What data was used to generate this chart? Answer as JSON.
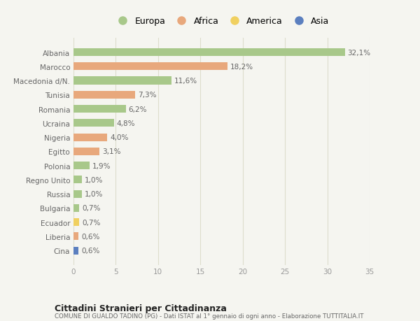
{
  "countries": [
    "Albania",
    "Marocco",
    "Macedonia d/N.",
    "Tunisia",
    "Romania",
    "Ucraina",
    "Nigeria",
    "Egitto",
    "Polonia",
    "Regno Unito",
    "Russia",
    "Bulgaria",
    "Ecuador",
    "Liberia",
    "Cina"
  ],
  "values": [
    32.1,
    18.2,
    11.6,
    7.3,
    6.2,
    4.8,
    4.0,
    3.1,
    1.9,
    1.0,
    1.0,
    0.7,
    0.7,
    0.6,
    0.6
  ],
  "labels": [
    "32,1%",
    "18,2%",
    "11,6%",
    "7,3%",
    "6,2%",
    "4,8%",
    "4,0%",
    "3,1%",
    "1,9%",
    "1,0%",
    "1,0%",
    "0,7%",
    "0,7%",
    "0,6%",
    "0,6%"
  ],
  "continents": [
    "Europa",
    "Africa",
    "Europa",
    "Africa",
    "Europa",
    "Europa",
    "Africa",
    "Africa",
    "Europa",
    "Europa",
    "Europa",
    "Europa",
    "America",
    "Africa",
    "Asia"
  ],
  "colors": {
    "Europa": "#a8c88a",
    "Africa": "#e8a87c",
    "America": "#f0d060",
    "Asia": "#5b7fbf"
  },
  "bg_color": "#f5f5f0",
  "title": "Cittadini Stranieri per Cittadinanza",
  "subtitle": "COMUNE DI GUALDO TADINO (PG) - Dati ISTAT al 1° gennaio di ogni anno - Elaborazione TUTTITALIA.IT",
  "xlim": [
    0,
    35
  ],
  "xticks": [
    0,
    5,
    10,
    15,
    20,
    25,
    30,
    35
  ],
  "bar_height": 0.55,
  "grid_color": "#ddddcc",
  "label_fontsize": 7.5,
  "tick_fontsize": 7.5,
  "legend_entries": [
    "Europa",
    "Africa",
    "America",
    "Asia"
  ]
}
